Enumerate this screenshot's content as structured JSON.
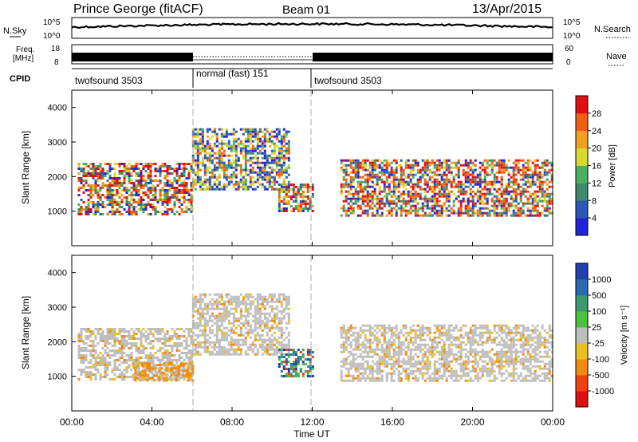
{
  "header": {
    "station": "Prince George (fitACF)",
    "beam": "Beam 01",
    "date": "13/Apr/2015"
  },
  "noise_panel": {
    "left_label": "N.Sky",
    "right_label": "N.Search",
    "left_ticks": [
      "10^5",
      "10^0"
    ],
    "right_ticks": [
      "10^5",
      "10^0"
    ]
  },
  "freq_panel": {
    "left_label_1": "Freq.",
    "left_label_2": "[MHz]",
    "left_ticks": [
      "18",
      "8"
    ],
    "right_label": "Nave",
    "right_ticks": [
      "60",
      "0"
    ]
  },
  "cpid": {
    "label": "CPID",
    "segments": [
      {
        "label": "twofsound 3503",
        "start_hr": 0,
        "end_hr": 6
      },
      {
        "label": "normal (fast) 151",
        "start_hr": 6,
        "end_hr": 11.9
      },
      {
        "label": "twofsound 3503",
        "start_hr": 11.9,
        "end_hr": 24
      }
    ]
  },
  "axes": {
    "x_ticks": [
      "00:00",
      "04:00",
      "08:00",
      "12:00",
      "16:00",
      "20:00",
      "00:00"
    ],
    "x_title": "Time UT",
    "y_title": "Slant Range [km]",
    "y_ticks": [
      "1000",
      "2000",
      "3000",
      "4000"
    ]
  },
  "power_scale": {
    "title": "Power [dB]",
    "labels": [
      "4",
      "8",
      "12",
      "16",
      "20",
      "24",
      "28"
    ],
    "colors": [
      "#2222d8",
      "#2a58b8",
      "#3f8a6a",
      "#48b060",
      "#d8d830",
      "#f0a020",
      "#f06010",
      "#e01010"
    ]
  },
  "velocity_scale": {
    "title": "Velocity [m s⁻¹]",
    "labels": [
      "1000",
      "500",
      "100",
      "25",
      "-25",
      "-100",
      "-500",
      "-1000"
    ],
    "colors": [
      "#2040b0",
      "#2a6ab0",
      "#3a9a70",
      "#4cc040",
      "#bebebe",
      "#e8c020",
      "#f08a10",
      "#f04010",
      "#e01010"
    ]
  },
  "chart_data": [
    {
      "type": "heatmap",
      "name": "power",
      "x_range_hr": [
        0,
        24
      ],
      "y_range_km": [
        0,
        4500
      ],
      "regions": [
        {
          "t0": 0.3,
          "t1": 6.0,
          "r0": 900,
          "r1": 2400,
          "level": "high"
        },
        {
          "t0": 6.0,
          "t1": 10.8,
          "r0": 1600,
          "r1": 3400,
          "level": "mid"
        },
        {
          "t0": 10.3,
          "t1": 12.0,
          "r0": 1000,
          "r1": 1800,
          "level": "high"
        },
        {
          "t0": 13.4,
          "t1": 24.0,
          "r0": 900,
          "r1": 2500,
          "level": "high"
        }
      ]
    },
    {
      "type": "heatmap",
      "name": "velocity",
      "x_range_hr": [
        0,
        24
      ],
      "y_range_km": [
        0,
        4500
      ],
      "regions": [
        {
          "t0": 0.3,
          "t1": 6.0,
          "r0": 900,
          "r1": 2400,
          "v": -25
        },
        {
          "t0": 3.0,
          "t1": 6.0,
          "r0": 900,
          "r1": 1400,
          "v": -300
        },
        {
          "t0": 6.0,
          "t1": 10.8,
          "r0": 1600,
          "r1": 3400,
          "v": -25
        },
        {
          "t0": 10.3,
          "t1": 12.0,
          "r0": 1000,
          "r1": 1800,
          "v": 100
        },
        {
          "t0": 13.4,
          "t1": 24.0,
          "r0": 900,
          "r1": 2500,
          "v": 0
        }
      ]
    }
  ]
}
